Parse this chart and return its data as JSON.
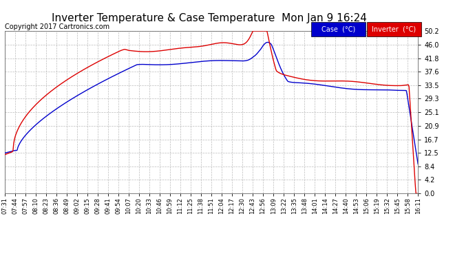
{
  "title": "Inverter Temperature & Case Temperature  Mon Jan 9 16:24",
  "copyright": "Copyright 2017 Cartronics.com",
  "yticks": [
    0.0,
    4.2,
    8.4,
    12.5,
    16.7,
    20.9,
    25.1,
    29.3,
    33.5,
    37.6,
    41.8,
    46.0,
    50.2
  ],
  "ymin": 0.0,
  "ymax": 50.2,
  "legend_case_label": "Case  (°C)",
  "legend_inverter_label": "Inverter  (°C)",
  "case_color": "#0000cc",
  "inverter_color": "#dd0000",
  "background_color": "#ffffff",
  "grid_color": "#bbbbbb",
  "title_fontsize": 11,
  "copyright_fontsize": 7,
  "xtick_labels": [
    "07:31",
    "07:44",
    "07:57",
    "08:10",
    "08:23",
    "08:36",
    "08:49",
    "09:02",
    "09:15",
    "09:28",
    "09:41",
    "09:54",
    "10:07",
    "10:20",
    "10:33",
    "10:46",
    "10:59",
    "11:12",
    "11:25",
    "11:38",
    "11:51",
    "12:04",
    "12:17",
    "12:30",
    "12:43",
    "12:56",
    "13:09",
    "13:22",
    "13:35",
    "13:48",
    "14:01",
    "14:14",
    "14:27",
    "14:40",
    "14:53",
    "15:06",
    "15:19",
    "15:32",
    "15:45",
    "15:58",
    "16:11"
  ]
}
